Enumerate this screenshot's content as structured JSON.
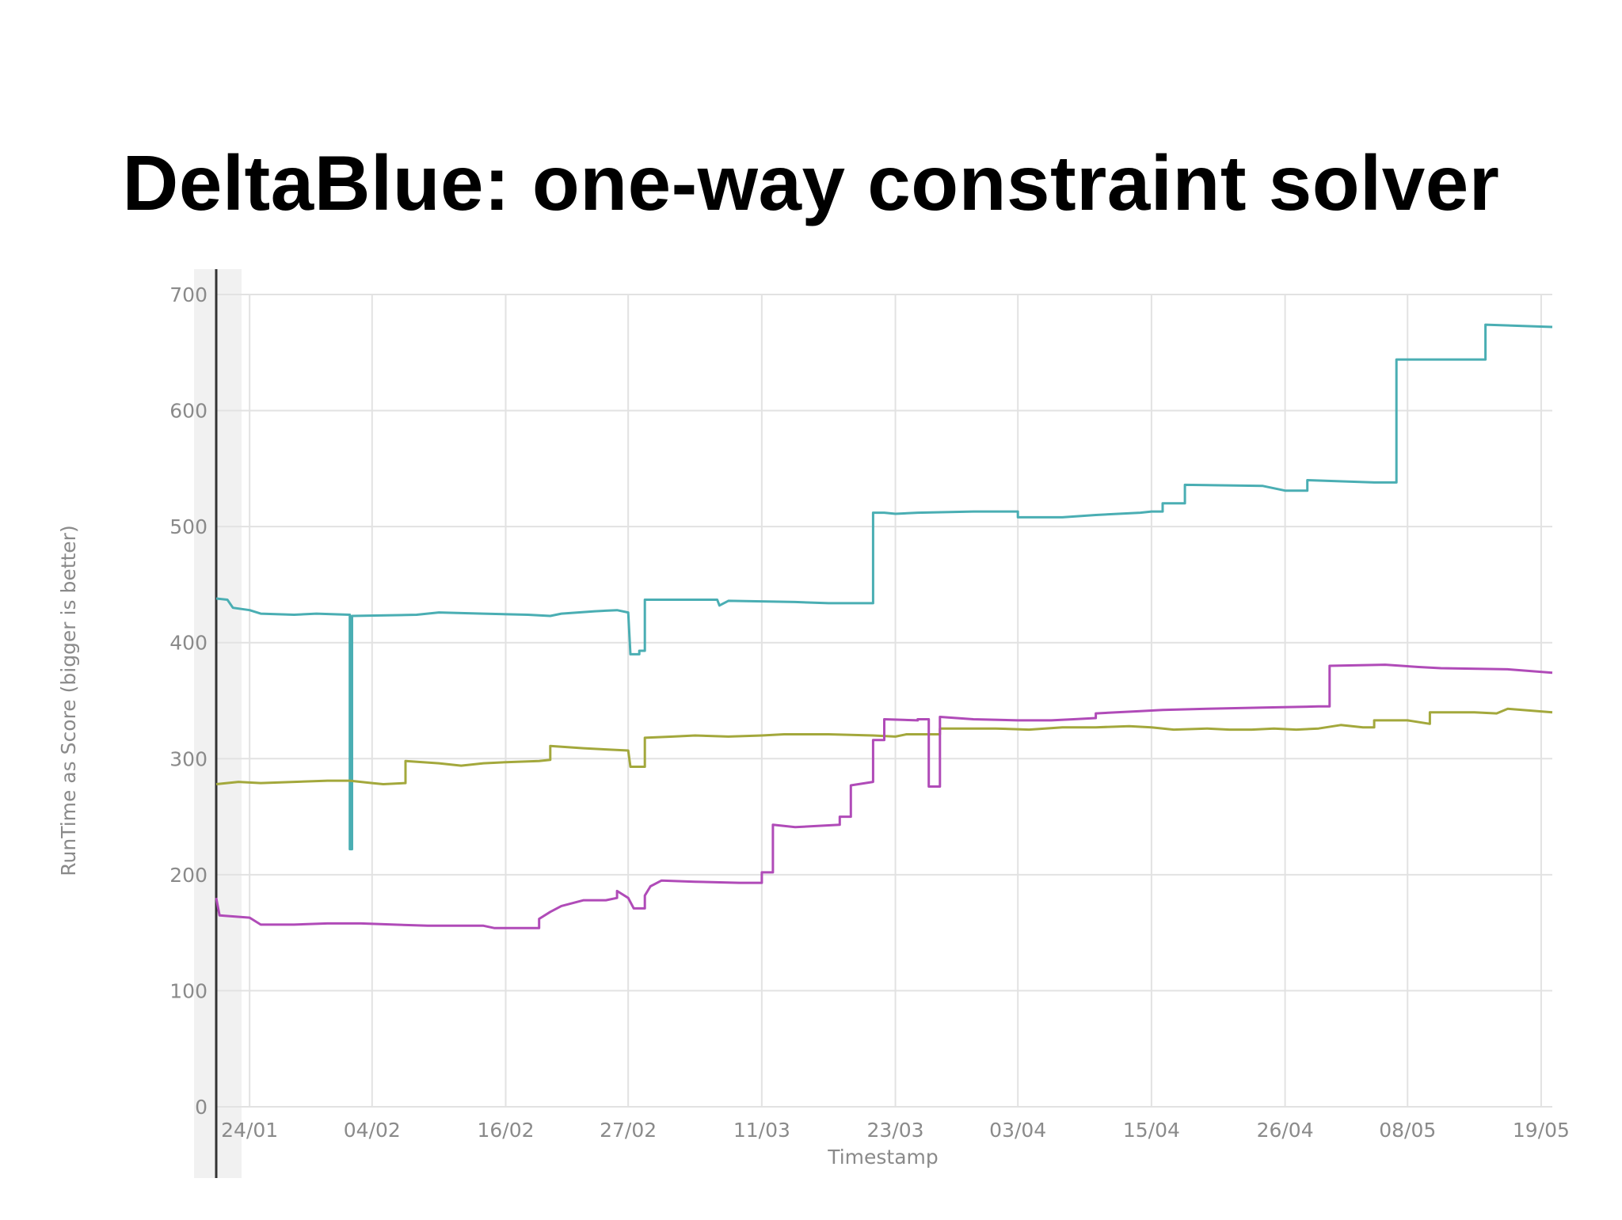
{
  "slide": {
    "title": "DeltaBlue: one-way constraint solver"
  },
  "chart_data": {
    "type": "line",
    "title": "DeltaBlue: one-way constraint solver",
    "xlabel": "Timestamp",
    "ylabel": "RunTime as Score (bigger is better)",
    "ylim": [
      0,
      700
    ],
    "yticks": [
      0,
      100,
      200,
      300,
      400,
      500,
      600,
      700
    ],
    "x_day_range": [
      21,
      141
    ],
    "xticks": [
      {
        "day": 24,
        "label": "24/01"
      },
      {
        "day": 35,
        "label": "04/02"
      },
      {
        "day": 47,
        "label": "16/02"
      },
      {
        "day": 58,
        "label": "27/02"
      },
      {
        "day": 70,
        "label": "11/03"
      },
      {
        "day": 82,
        "label": "23/03"
      },
      {
        "day": 93,
        "label": "03/04"
      },
      {
        "day": 105,
        "label": "15/04"
      },
      {
        "day": 117,
        "label": "26/04"
      },
      {
        "day": 128,
        "label": "08/05"
      },
      {
        "day": 140,
        "label": "19/05"
      }
    ],
    "grid": true,
    "series": [
      {
        "name": "cyan",
        "color": "#4aaeb3",
        "points": [
          [
            21,
            438
          ],
          [
            22,
            437
          ],
          [
            22.5,
            430
          ],
          [
            24,
            428
          ],
          [
            25,
            425
          ],
          [
            28,
            424
          ],
          [
            30,
            425
          ],
          [
            33,
            424
          ],
          [
            33,
            222
          ],
          [
            33.2,
            222
          ],
          [
            33.2,
            423
          ],
          [
            39,
            424
          ],
          [
            41,
            426
          ],
          [
            45,
            425
          ],
          [
            49,
            424
          ],
          [
            51,
            423
          ],
          [
            52,
            425
          ],
          [
            55,
            427
          ],
          [
            57,
            428
          ],
          [
            58,
            426
          ],
          [
            58.2,
            390
          ],
          [
            59,
            390
          ],
          [
            59,
            393
          ],
          [
            59.5,
            393
          ],
          [
            59.5,
            437
          ],
          [
            66,
            437
          ],
          [
            66.2,
            432
          ],
          [
            67,
            436
          ],
          [
            73,
            435
          ],
          [
            76,
            434
          ],
          [
            80,
            434
          ],
          [
            80,
            512
          ],
          [
            81,
            512
          ],
          [
            82,
            511
          ],
          [
            84,
            512
          ],
          [
            89,
            513
          ],
          [
            93,
            513
          ],
          [
            93,
            508
          ],
          [
            97,
            508
          ],
          [
            100,
            510
          ],
          [
            104,
            512
          ],
          [
            105,
            513
          ],
          [
            106,
            513
          ],
          [
            106,
            520
          ],
          [
            108,
            520
          ],
          [
            108,
            536
          ],
          [
            115,
            535
          ],
          [
            117,
            531
          ],
          [
            119,
            531
          ],
          [
            119,
            540
          ],
          [
            125,
            538
          ],
          [
            127,
            538
          ],
          [
            127,
            644
          ],
          [
            135,
            644
          ],
          [
            135,
            674
          ],
          [
            141,
            672
          ]
        ]
      },
      {
        "name": "olive",
        "color": "#a3a83c",
        "points": [
          [
            21,
            278
          ],
          [
            23,
            280
          ],
          [
            25,
            279
          ],
          [
            28,
            280
          ],
          [
            31,
            281
          ],
          [
            33,
            281
          ],
          [
            35,
            279
          ],
          [
            36,
            278
          ],
          [
            38,
            279
          ],
          [
            38,
            298
          ],
          [
            41,
            296
          ],
          [
            43,
            294
          ],
          [
            45,
            296
          ],
          [
            47,
            297
          ],
          [
            50,
            298
          ],
          [
            51,
            299
          ],
          [
            51,
            311
          ],
          [
            54,
            309
          ],
          [
            56,
            308
          ],
          [
            58,
            307
          ],
          [
            58.2,
            293
          ],
          [
            59,
            293
          ],
          [
            59,
            293
          ],
          [
            59.5,
            293
          ],
          [
            59.5,
            318
          ],
          [
            62,
            319
          ],
          [
            64,
            320
          ],
          [
            67,
            319
          ],
          [
            70,
            320
          ],
          [
            72,
            321
          ],
          [
            76,
            321
          ],
          [
            80,
            320
          ],
          [
            82,
            319
          ],
          [
            83,
            321
          ],
          [
            86,
            321
          ],
          [
            86,
            326
          ],
          [
            91,
            326
          ],
          [
            94,
            325
          ],
          [
            97,
            327
          ],
          [
            100,
            327
          ],
          [
            103,
            328
          ],
          [
            105,
            327
          ],
          [
            107,
            325
          ],
          [
            110,
            326
          ],
          [
            112,
            325
          ],
          [
            114,
            325
          ],
          [
            116,
            326
          ],
          [
            118,
            325
          ],
          [
            120,
            326
          ],
          [
            122,
            329
          ],
          [
            124,
            327
          ],
          [
            125,
            327
          ],
          [
            125,
            333
          ],
          [
            127,
            333
          ],
          [
            128,
            333
          ],
          [
            130,
            330
          ],
          [
            130,
            340
          ],
          [
            134,
            340
          ],
          [
            136,
            339
          ],
          [
            137,
            343
          ],
          [
            141,
            340
          ]
        ]
      },
      {
        "name": "magenta",
        "color": "#b04bb8",
        "points": [
          [
            21,
            180
          ],
          [
            21.3,
            165
          ],
          [
            24,
            163
          ],
          [
            25,
            157
          ],
          [
            28,
            157
          ],
          [
            31,
            158
          ],
          [
            34,
            158
          ],
          [
            37,
            157
          ],
          [
            40,
            156
          ],
          [
            43,
            156
          ],
          [
            45,
            156
          ],
          [
            46,
            154
          ],
          [
            49,
            154
          ],
          [
            50,
            154
          ],
          [
            50,
            162
          ],
          [
            51,
            168
          ],
          [
            52,
            173
          ],
          [
            54,
            178
          ],
          [
            56,
            178
          ],
          [
            57,
            180
          ],
          [
            57,
            186
          ],
          [
            58,
            180
          ],
          [
            58.5,
            171
          ],
          [
            59.5,
            171
          ],
          [
            59.5,
            182
          ],
          [
            60,
            190
          ],
          [
            61,
            195
          ],
          [
            64,
            194
          ],
          [
            68,
            193
          ],
          [
            70,
            193
          ],
          [
            70,
            202
          ],
          [
            71,
            202
          ],
          [
            71,
            243
          ],
          [
            73,
            241
          ],
          [
            75,
            242
          ],
          [
            77,
            243
          ],
          [
            77,
            250
          ],
          [
            78,
            250
          ],
          [
            78,
            277
          ],
          [
            80,
            280
          ],
          [
            80,
            316
          ],
          [
            81,
            316
          ],
          [
            81,
            334
          ],
          [
            84,
            333
          ],
          [
            84,
            334
          ],
          [
            85,
            334
          ],
          [
            85,
            276
          ],
          [
            86,
            276
          ],
          [
            86,
            336
          ],
          [
            89,
            334
          ],
          [
            93,
            333
          ],
          [
            96,
            333
          ],
          [
            98,
            334
          ],
          [
            100,
            335
          ],
          [
            100,
            339
          ],
          [
            104,
            341
          ],
          [
            106,
            342
          ],
          [
            110,
            343
          ],
          [
            115,
            344
          ],
          [
            120,
            345
          ],
          [
            121,
            345
          ],
          [
            121,
            380
          ],
          [
            126,
            381
          ],
          [
            129,
            379
          ],
          [
            131,
            378
          ],
          [
            137,
            377
          ],
          [
            141,
            374
          ]
        ]
      }
    ]
  }
}
